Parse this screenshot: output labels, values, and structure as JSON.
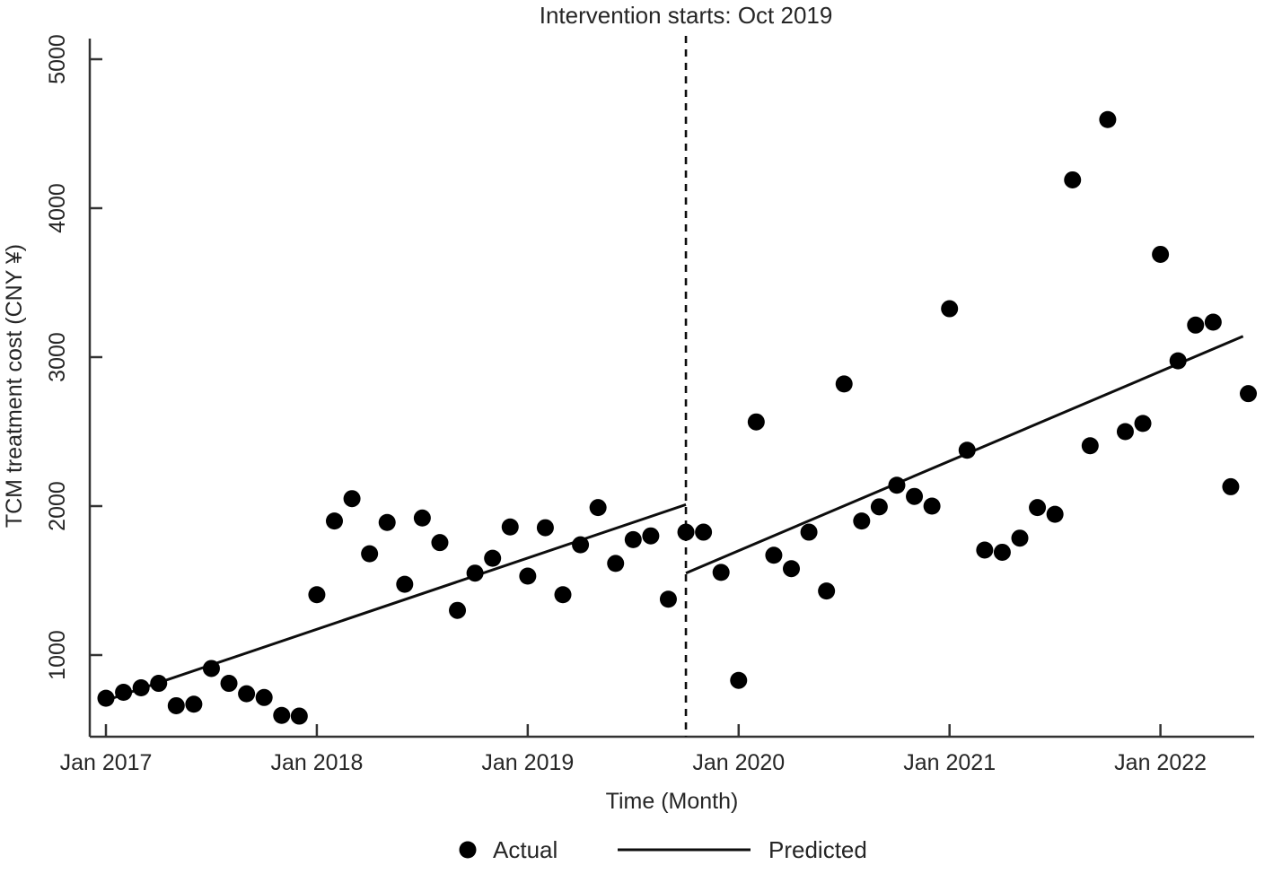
{
  "figure": {
    "background": "#ffffff",
    "text_color": "#262626",
    "axis_color": "#333333",
    "point_color": "#000000",
    "line_color": "#0d0d0d"
  },
  "chart_data": {
    "type": "scatter",
    "title": "Intervention starts: Oct 2019",
    "xlabel": "Time (Month)",
    "ylabel": "TCM treatment cost (CNY ¥)",
    "grid": false,
    "x_tick_labels": [
      "Jan 2017",
      "Jan 2018",
      "Jan 2019",
      "Jan 2020",
      "Jan 2021",
      "Jan 2022"
    ],
    "x_tick_month_indices": [
      0,
      12,
      24,
      36,
      48,
      60
    ],
    "y_ticks": [
      1000,
      2000,
      3000,
      4000,
      5000
    ],
    "ylim": [
      450,
      5150
    ],
    "xlim_month_indices": [
      -0.92,
      65.4
    ],
    "legend": {
      "position": "bottom-center",
      "entries": [
        {
          "label": "Actual",
          "marker": "dot"
        },
        {
          "label": "Predicted",
          "marker": "line"
        }
      ]
    },
    "intervention": {
      "label": "Intervention starts: Oct 2019",
      "month": "Oct 2019",
      "month_index": 33,
      "style": "dashed-vertical-line"
    },
    "series": [
      {
        "name": "Actual",
        "type": "scatter",
        "months": [
          "Jan 2017",
          "Feb 2017",
          "Mar 2017",
          "Apr 2017",
          "May 2017",
          "Jun 2017",
          "Jul 2017",
          "Aug 2017",
          "Sep 2017",
          "Oct 2017",
          "Nov 2017",
          "Dec 2017",
          "Jan 2018",
          "Feb 2018",
          "Mar 2018",
          "Apr 2018",
          "May 2018",
          "Jun 2018",
          "Jul 2018",
          "Aug 2018",
          "Sep 2018",
          "Oct 2018",
          "Nov 2018",
          "Dec 2018",
          "Jan 2019",
          "Feb 2019",
          "Mar 2019",
          "Apr 2019",
          "May 2019",
          "Jun 2019",
          "Jul 2019",
          "Aug 2019",
          "Sep 2019",
          "Oct 2019",
          "Nov 2019",
          "Dec 2019",
          "Jan 2020",
          "Feb 2020",
          "Mar 2020",
          "Apr 2020",
          "May 2020",
          "Jun 2020",
          "Jul 2020",
          "Aug 2020",
          "Sep 2020",
          "Oct 2020",
          "Nov 2020",
          "Dec 2020",
          "Jan 2021",
          "Feb 2021",
          "Mar 2021",
          "Apr 2021",
          "May 2021",
          "Jun 2021",
          "Jul 2021",
          "Aug 2021",
          "Sep 2021",
          "Oct 2021",
          "Nov 2021",
          "Dec 2021",
          "Jan 2022",
          "Feb 2022",
          "Mar 2022",
          "Apr 2022",
          "May 2022",
          "Jun 2022"
        ],
        "values": [
          710,
          750,
          780,
          810,
          660,
          670,
          910,
          810,
          740,
          715,
          595,
          590,
          1405,
          1900,
          2050,
          1680,
          1890,
          1475,
          1920,
          1755,
          1300,
          1550,
          1650,
          1860,
          1530,
          1855,
          1405,
          1740,
          1990,
          1615,
          1775,
          1800,
          1375,
          1825,
          1825,
          1555,
          830,
          2565,
          1670,
          1580,
          1825,
          1430,
          2820,
          1900,
          1995,
          2140,
          2065,
          2000,
          3325,
          2375,
          1705,
          1690,
          1785,
          1990,
          1945,
          4190,
          2405,
          4595,
          2500,
          2555,
          3690,
          2975,
          3215,
          3235,
          2130,
          2755
        ]
      },
      {
        "name": "Predicted",
        "type": "line",
        "segments": [
          {
            "label": "pre-intervention",
            "m0": 0,
            "v0": 695,
            "m1": 33,
            "v1": 2010
          },
          {
            "label": "post-intervention",
            "m0": 33,
            "v0": 1550,
            "m1": 64.7,
            "v1": 3140
          }
        ]
      }
    ]
  }
}
